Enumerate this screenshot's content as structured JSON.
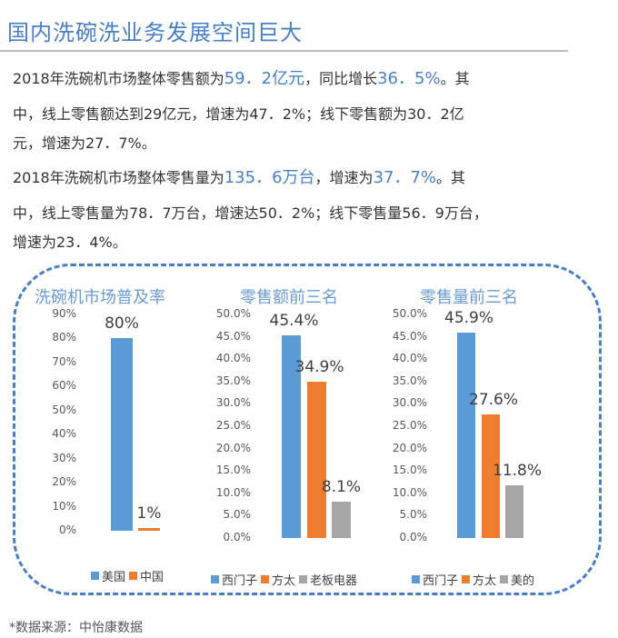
{
  "header": {
    "title": "国内洗碗洗业务发展空间巨大"
  },
  "paragraphs": [
    {
      "lines": [
        [
          {
            "text": "2018年洗碗机市场整体零售额为",
            "hl": false
          },
          {
            "text": "59．2亿元",
            "hl": true
          },
          {
            "text": "，同比增长",
            "hl": false
          },
          {
            "text": "36．5%",
            "hl": true
          },
          {
            "text": "。其",
            "hl": false
          }
        ],
        [
          {
            "text": "中，线上零售额达到29亿元，增速为47．2%；线下零售额为30．2亿",
            "hl": false
          }
        ],
        [
          {
            "text": "元，增速为27．7%。",
            "hl": false
          }
        ]
      ]
    },
    {
      "lines": [
        [
          {
            "text": "2018年洗碗机市场整体零售量为",
            "hl": false
          },
          {
            "text": "135．6万台",
            "hl": true
          },
          {
            "text": "，增速为",
            "hl": false
          },
          {
            "text": "37．7%",
            "hl": true
          },
          {
            "text": "。其",
            "hl": false
          }
        ],
        [
          {
            "text": "中，线上零售量为78．7万台，增速达50．2%；线下零售量56．9万台，",
            "hl": false
          }
        ],
        [
          {
            "text": "增速为23．4%。",
            "hl": false
          }
        ]
      ]
    }
  ],
  "colors": {
    "blue": "#5b9bd5",
    "orange": "#ed7d31",
    "gray": "#a5a5a5",
    "title_blue": "#4a7fc3",
    "chart_title": "#6b9bd0",
    "dash_border": "#4c7fc2"
  },
  "chart_data": [
    {
      "type": "bar",
      "title": "洗碗机市场普及率",
      "categories": [
        "美国",
        "中国"
      ],
      "values": [
        80,
        1
      ],
      "value_labels": [
        "80%",
        "1%"
      ],
      "colors": [
        "#5b9bd5",
        "#ed7d31"
      ],
      "xlabel": "",
      "ylabel": "",
      "ylim": [
        0,
        90
      ],
      "yticks": [
        "90%",
        "80%",
        "70%",
        "60%",
        "50%",
        "40%",
        "30%",
        "20%",
        "10%",
        "0%"
      ],
      "grid": false,
      "legend": [
        "美国",
        "中国"
      ],
      "legend_position": "bottom"
    },
    {
      "type": "bar",
      "title": "零售额前三名",
      "categories": [
        "西门子",
        "方太",
        "老板电器"
      ],
      "values": [
        45.4,
        34.9,
        8.1
      ],
      "value_labels": [
        "45.4%",
        "34.9%",
        "8.1%"
      ],
      "colors": [
        "#5b9bd5",
        "#ed7d31",
        "#a5a5a5"
      ],
      "xlabel": "",
      "ylabel": "",
      "ylim": [
        0,
        50
      ],
      "yticks": [
        "50.0%",
        "45.0%",
        "40.0%",
        "35.0%",
        "30.0%",
        "25.0%",
        "20.0%",
        "15.0%",
        "10.0%",
        "5.0%",
        "0.0%"
      ],
      "grid": false,
      "legend": [
        "西门子",
        "方太",
        "老板电器"
      ],
      "legend_position": "bottom"
    },
    {
      "type": "bar",
      "title": "零售量前三名",
      "categories": [
        "西门子",
        "方太",
        "美的"
      ],
      "values": [
        45.9,
        27.6,
        11.8
      ],
      "value_labels": [
        "45.9%",
        "27.6%",
        "11.8%"
      ],
      "colors": [
        "#5b9bd5",
        "#ed7d31",
        "#a5a5a5"
      ],
      "xlabel": "",
      "ylabel": "",
      "ylim": [
        0,
        50
      ],
      "yticks": [
        "50.0%",
        "45.0%",
        "40.0%",
        "35.0%",
        "30.0%",
        "25.0%",
        "20.0%",
        "15.0%",
        "10.0%",
        "5.0%",
        "0.0%"
      ],
      "grid": false,
      "legend": [
        "西门子",
        "方太",
        "美的"
      ],
      "legend_position": "bottom"
    }
  ],
  "footer": {
    "source": "*数据来源：中怡康数据"
  }
}
